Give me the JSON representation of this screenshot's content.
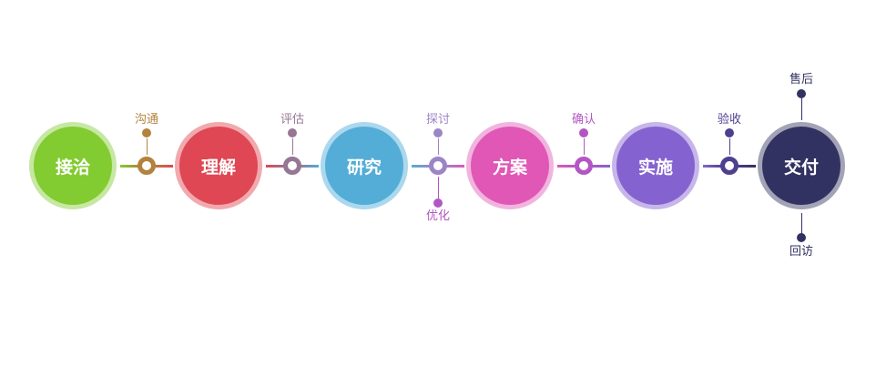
{
  "stages": [
    {
      "label": "接洽",
      "color": "#82cb30",
      "ring": "#c6e8a3"
    },
    {
      "label": "理解",
      "color": "#de4753",
      "ring": "#f1a9ae"
    },
    {
      "label": "研究",
      "color": "#54add6",
      "ring": "#abd8ee"
    },
    {
      "label": "方案",
      "color": "#e057b6",
      "ring": "#f1b4df"
    },
    {
      "label": "实施",
      "color": "#8463d0",
      "ring": "#c6b6ea"
    },
    {
      "label": "交付",
      "color": "#323262",
      "ring": "#a3a3b7"
    }
  ],
  "connectors": [
    {
      "color": "#b3823e",
      "top": "沟通"
    },
    {
      "color": "#957793",
      "top": "评估"
    },
    {
      "color": "#9c85c6",
      "top": "探讨",
      "bottom": "优化",
      "bottom_color": "#b157c2"
    },
    {
      "color": "#b356c3",
      "top": "确认"
    },
    {
      "color": "#4f3f8f",
      "top": "验收"
    }
  ],
  "final": {
    "top": "售后",
    "bottom": "回访",
    "color": "#323262"
  }
}
